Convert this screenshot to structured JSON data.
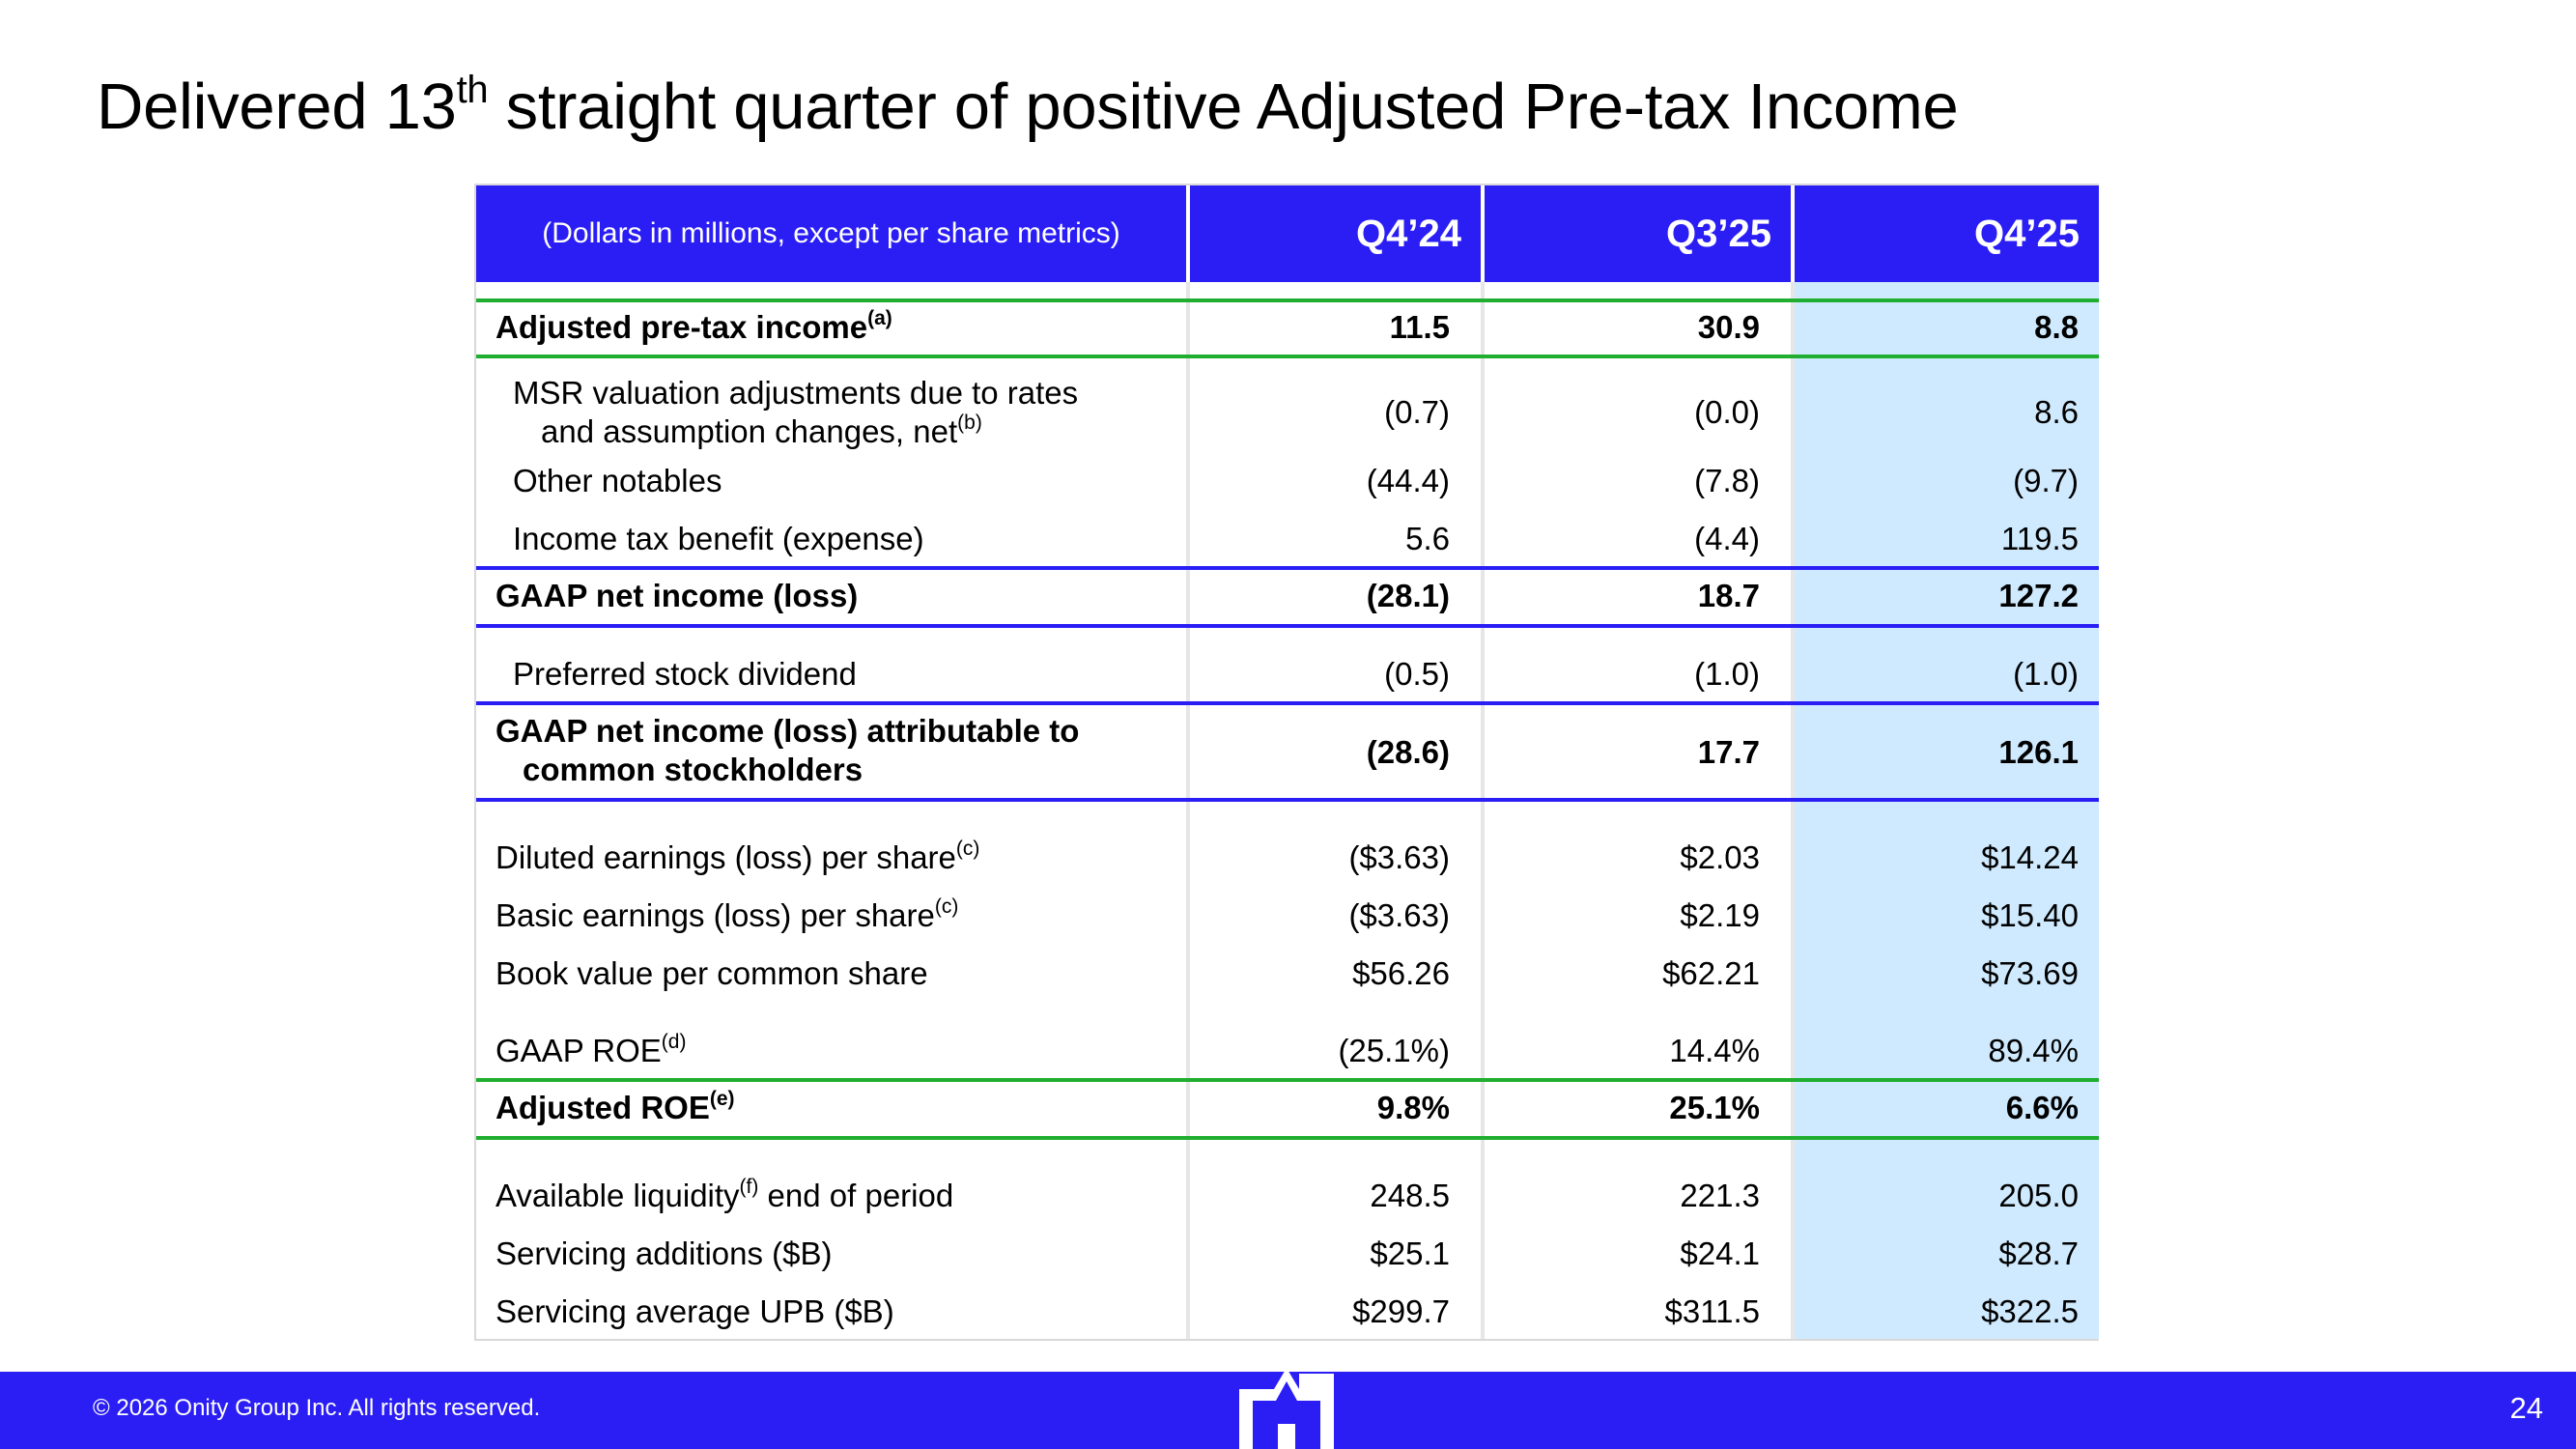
{
  "title": {
    "main": "Delivered 13",
    "sup": "th",
    "rest": " straight quarter of positive Adjusted Pre-tax Income"
  },
  "table": {
    "note": "(Dollars in millions, except per share metrics)",
    "columns": [
      "Q4’24",
      "Q3’25",
      "Q4’25"
    ],
    "rows": [
      {
        "label": "Adjusted pre-tax income",
        "sup": "(a)",
        "values": [
          "11.5",
          "30.9",
          "8.8"
        ]
      },
      {
        "label_line1": "MSR valuation adjustments due to rates",
        "label_line2": "and assumption changes, net",
        "sup": "(b)",
        "values": [
          "(0.7)",
          "(0.0)",
          "8.6"
        ]
      },
      {
        "label": "Other notables",
        "values": [
          "(44.4)",
          "(7.8)",
          "(9.7)"
        ]
      },
      {
        "label": "Income tax benefit (expense)",
        "values": [
          "5.6",
          "(4.4)",
          "119.5"
        ]
      },
      {
        "label": "GAAP net income (loss)",
        "values": [
          "(28.1)",
          "18.7",
          "127.2"
        ]
      },
      {
        "label": "Preferred stock dividend",
        "values": [
          "(0.5)",
          "(1.0)",
          "(1.0)"
        ]
      },
      {
        "label_line1": "GAAP net income (loss) attributable to",
        "label_line2": "common stockholders",
        "values": [
          "(28.6)",
          "17.7",
          "126.1"
        ]
      },
      {
        "label": "Diluted earnings (loss) per share",
        "sup": "(c)",
        "values": [
          "($3.63)",
          "$2.03",
          "$14.24"
        ]
      },
      {
        "label": "Basic earnings (loss) per share",
        "sup": "(c)",
        "values": [
          "($3.63)",
          "$2.19",
          "$15.40"
        ]
      },
      {
        "label": "Book value per common share",
        "values": [
          "$56.26",
          "$62.21",
          "$73.69"
        ]
      },
      {
        "label": "GAAP ROE",
        "sup": "(d)",
        "values": [
          "(25.1%)",
          "14.4%",
          "89.4%"
        ]
      },
      {
        "label": "Adjusted ROE",
        "sup": "(e)",
        "values": [
          "9.8%",
          "25.1%",
          "6.6%"
        ]
      },
      {
        "label": "Available liquidity",
        "sup": "(f)",
        "label_suffix": " end of period",
        "values": [
          "248.5",
          "221.3",
          "205.0"
        ]
      },
      {
        "label": "Servicing additions ($B)",
        "values": [
          "$25.1",
          "$24.1",
          "$28.7"
        ]
      },
      {
        "label": "Servicing average UPB ($B)",
        "values": [
          "$299.7",
          "$311.5",
          "$322.5"
        ]
      }
    ]
  },
  "footer": {
    "copyright": "© 2026 Onity Group Inc. All rights reserved.",
    "page_number": "24"
  },
  "colors": {
    "brand_blue": "#2A1EF5",
    "green_rule": "#1FAE2F",
    "highlight": "#CFEAFE"
  }
}
